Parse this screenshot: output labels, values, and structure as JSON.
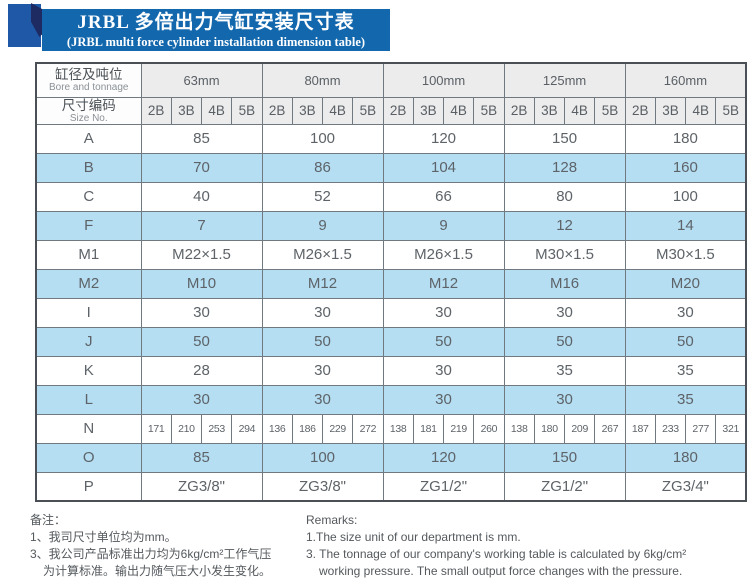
{
  "title": {
    "line1": "JRBL 多倍出力气缸安装尺寸表",
    "line2": "(JRBL multi force cylinder installation dimension table)"
  },
  "table": {
    "corner": {
      "zh1": "缸径及吨位",
      "en1": "Bore and tonnage",
      "zh2": "尺寸编码",
      "en2": "Size No."
    },
    "bores": [
      "63mm",
      "80mm",
      "100mm",
      "125mm",
      "160mm"
    ],
    "size_codes": [
      "2B",
      "3B",
      "4B",
      "5B"
    ],
    "rows": [
      {
        "label": "A",
        "values": [
          "85",
          "100",
          "120",
          "150",
          "180"
        ]
      },
      {
        "label": "B",
        "values": [
          "70",
          "86",
          "104",
          "128",
          "160"
        ]
      },
      {
        "label": "C",
        "values": [
          "40",
          "52",
          "66",
          "80",
          "100"
        ]
      },
      {
        "label": "F",
        "values": [
          "7",
          "9",
          "9",
          "12",
          "14"
        ]
      },
      {
        "label": "M1",
        "values": [
          "M22×1.5",
          "M26×1.5",
          "M26×1.5",
          "M30×1.5",
          "M30×1.5"
        ]
      },
      {
        "label": "M2",
        "values": [
          "M10",
          "M12",
          "M12",
          "M16",
          "M20"
        ]
      },
      {
        "label": "I",
        "values": [
          "30",
          "30",
          "30",
          "30",
          "30"
        ]
      },
      {
        "label": "J",
        "values": [
          "50",
          "50",
          "50",
          "50",
          "50"
        ]
      },
      {
        "label": "K",
        "values": [
          "28",
          "30",
          "30",
          "35",
          "35"
        ]
      },
      {
        "label": "L",
        "values": [
          "30",
          "30",
          "30",
          "30",
          "35"
        ]
      },
      {
        "label": "N",
        "values": [
          "171",
          "210",
          "253",
          "294",
          "136",
          "186",
          "229",
          "272",
          "138",
          "181",
          "219",
          "260",
          "138",
          "180",
          "209",
          "267",
          "187",
          "233",
          "277",
          "321"
        ]
      },
      {
        "label": "O",
        "values": [
          "85",
          "100",
          "120",
          "150",
          "180"
        ]
      },
      {
        "label": "P",
        "values": [
          "ZG3/8\"",
          "ZG3/8\"",
          "ZG1/2\"",
          "ZG1/2\"",
          "ZG3/4\""
        ]
      }
    ]
  },
  "remarks": {
    "zh": {
      "heading": "备注：",
      "line1": "1、我司尺寸单位均为mm。",
      "line2": "3、我公司产品标准出力均为6kg/cm²工作气压",
      "line3": "为计算标准。输出力随气压大小发生变化。"
    },
    "en": {
      "heading": "Remarks:",
      "line1": "1.The size unit of our department is mm.",
      "line2": "3. The tonnage of our company's working table is calculated by 6kg/cm²",
      "line3": "working pressure. The small output force changes with the pressure."
    }
  },
  "colors": {
    "banner_blue": "#1367ad",
    "square_blue": "#1e58a6",
    "fold_navy": "#1d2b62",
    "row_blue": "#b5def3"
  }
}
